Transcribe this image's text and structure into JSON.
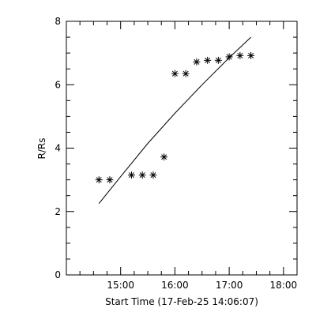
{
  "chart_data": {
    "type": "scatter",
    "title": "",
    "xlabel": "Start Time (17-Feb-25 14:06:07)",
    "ylabel": "R/Rs",
    "x_unit": "hours",
    "xlim": [
      14.0,
      18.25
    ],
    "ylim": [
      0,
      8
    ],
    "x_ticks": [
      {
        "value": 15,
        "label": "15:00"
      },
      {
        "value": 16,
        "label": "16:00"
      },
      {
        "value": 17,
        "label": "17:00"
      },
      {
        "value": 18,
        "label": "18:00"
      }
    ],
    "y_ticks": [
      {
        "value": 0,
        "label": "0"
      },
      {
        "value": 2,
        "label": "2"
      },
      {
        "value": 4,
        "label": "4"
      },
      {
        "value": 6,
        "label": "6"
      },
      {
        "value": 8,
        "label": "8"
      }
    ],
    "series": [
      {
        "marker": "asterisk",
        "x": [
          14.6,
          14.8,
          15.2,
          15.4,
          15.6,
          15.8,
          16.0,
          16.2,
          16.4,
          16.6,
          16.8,
          17.0,
          17.2,
          17.4
        ],
        "y": [
          3.0,
          3.0,
          3.15,
          3.15,
          3.15,
          3.72,
          6.35,
          6.35,
          6.72,
          6.77,
          6.77,
          6.88,
          6.92,
          6.92
        ]
      },
      {
        "marker": "none",
        "line": true,
        "x": [
          14.6,
          15.0,
          15.5,
          16.0,
          16.5,
          17.0,
          17.4
        ],
        "y": [
          2.25,
          3.1,
          4.15,
          5.1,
          6.0,
          6.85,
          7.5
        ]
      }
    ]
  }
}
